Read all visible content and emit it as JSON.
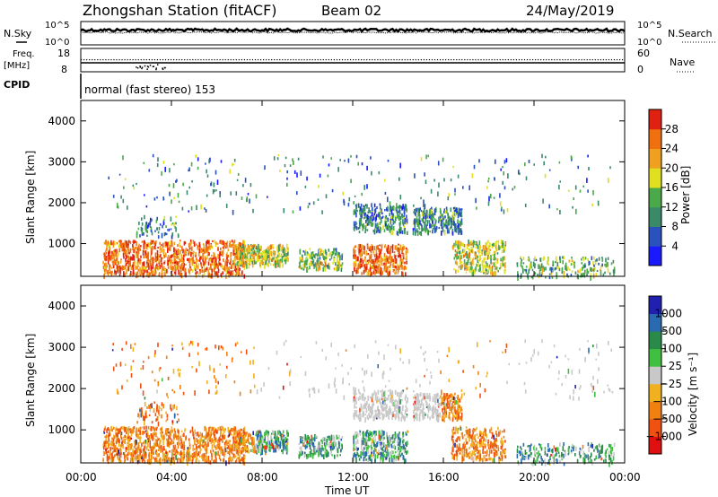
{
  "header": {
    "station": "Zhongshan Station (fitACF)",
    "beam": "Beam 02",
    "date": "24/May/2019"
  },
  "left_labels": {
    "nsky": "N.Sky",
    "freq": "Freq.",
    "freq_unit": "[MHz]",
    "cpid": "CPID"
  },
  "right_labels": {
    "nsearch": "N.Search",
    "nave": "Nave"
  },
  "noise_ticks_left": [
    "10^5",
    "10^0"
  ],
  "noise_ticks_right": [
    "10^5",
    "10^0"
  ],
  "freq_ticks": [
    "18",
    "8"
  ],
  "nave_ticks": [
    "60",
    "0"
  ],
  "cpid_text": "normal (fast stereo) 153",
  "colors": {
    "power": [
      "#1a1aff",
      "#2a52be",
      "#3a8a6a",
      "#4aaa4a",
      "#e0e020",
      "#f0a020",
      "#f07010",
      "#e02010"
    ],
    "velocity": [
      "#e01010",
      "#f05010",
      "#f08010",
      "#f0b020",
      "#c8c8c8",
      "#40c040",
      "#2a8a4a",
      "#2a6ab0",
      "#2020b0"
    ]
  },
  "chart_data": [
    {
      "type": "heatmap",
      "panel": "power",
      "ylabel": "Slant Range [km]",
      "yticks": [
        "1000",
        "2000",
        "3000",
        "4000"
      ],
      "ylim": [
        200,
        4500
      ],
      "colorbar_label": "Power [dB]",
      "colorbar_ticks": [
        "28",
        "24",
        "20",
        "16",
        "12",
        "8",
        "4"
      ],
      "clim": [
        0,
        30
      ]
    },
    {
      "type": "heatmap",
      "panel": "velocity",
      "ylabel": "Slant Range [km]",
      "yticks": [
        "1000",
        "2000",
        "3000",
        "4000"
      ],
      "ylim": [
        200,
        4500
      ],
      "colorbar_label": "Velocity [m s⁻¹]",
      "colorbar_ticks": [
        "1000",
        "500",
        "100",
        "25",
        "−25",
        "−100",
        "−500",
        "−1000"
      ]
    }
  ],
  "xaxis": {
    "ticks": [
      "00:00",
      "04:00",
      "08:00",
      "12:00",
      "16:00",
      "20:00",
      "00:00"
    ],
    "label": "Time UT"
  }
}
